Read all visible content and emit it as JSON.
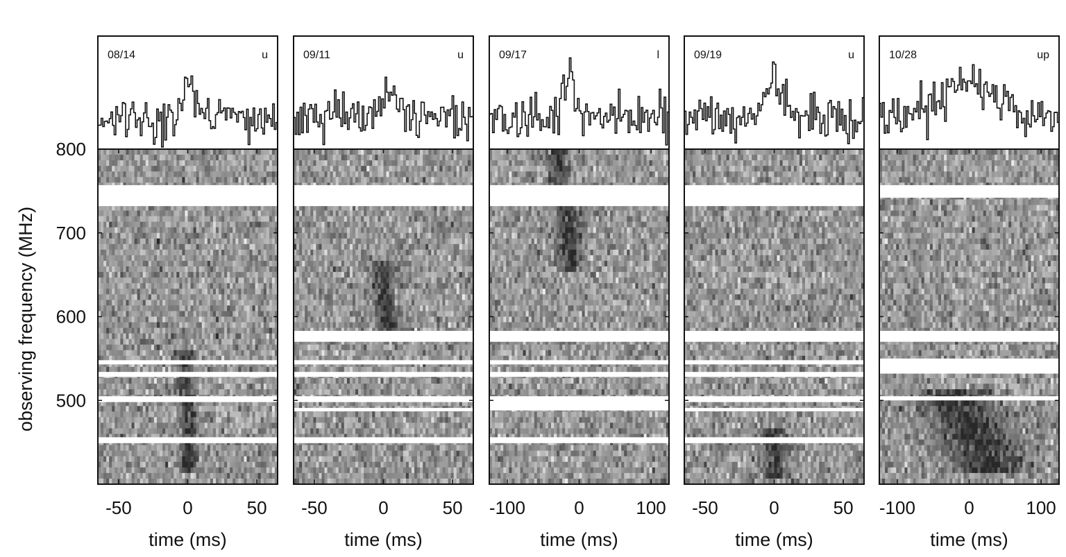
{
  "chart_data": {
    "type": "heatmap",
    "ylabel": "observing frequency (MHz)",
    "ylim": [
      400,
      800
    ],
    "yticks": [
      800,
      700,
      600,
      500
    ],
    "panels": [
      {
        "date": "08/14",
        "pol": "u",
        "xlabel": "time (ms)",
        "xlim": [
          -65,
          65
        ],
        "xticks": [
          -50,
          0,
          50
        ],
        "profile_peak_ms": 0,
        "profile_width_ms": 4,
        "masked_bands_mhz": [
          [
            732,
            757
          ],
          [
            548,
            543
          ],
          [
            534,
            528
          ],
          [
            505,
            498
          ],
          [
            456,
            449
          ]
        ],
        "burst_track": [
          [
            545,
            -3
          ],
          [
            500,
            0
          ],
          [
            480,
            1
          ],
          [
            430,
            0
          ]
        ]
      },
      {
        "date": "09/11",
        "pol": "u",
        "xlabel": "time (ms)",
        "xlabel_ticks_note": "",
        "xlim": [
          -65,
          65
        ],
        "xticks": [
          -50,
          0,
          50
        ],
        "profile_peak_ms": 2,
        "profile_width_ms": 5,
        "masked_bands_mhz": [
          [
            732,
            757
          ],
          [
            583,
            570
          ],
          [
            548,
            543
          ],
          [
            534,
            528
          ],
          [
            505,
            498
          ],
          [
            491,
            487
          ],
          [
            456,
            449
          ]
        ],
        "burst_track": [
          [
            650,
            0
          ],
          [
            610,
            1
          ],
          [
            590,
            3
          ]
        ]
      },
      {
        "date": "09/17",
        "pol": "l",
        "xlabel": "time (ms)",
        "xlim": [
          -125,
          125
        ],
        "xticks": [
          -100,
          0,
          100
        ],
        "profile_peak_ms": -15,
        "profile_width_ms": 10,
        "masked_bands_mhz": [
          [
            732,
            757
          ],
          [
            583,
            570
          ],
          [
            548,
            543
          ],
          [
            534,
            528
          ],
          [
            505,
            488
          ],
          [
            456,
            449
          ]
        ],
        "burst_track": [
          [
            790,
            -30
          ],
          [
            760,
            -28
          ],
          [
            720,
            -15
          ],
          [
            670,
            -12
          ]
        ]
      },
      {
        "date": "09/19",
        "pol": "u",
        "xlabel": "time (ms)",
        "xlim": [
          -65,
          65
        ],
        "xticks": [
          -50,
          0,
          50
        ],
        "profile_peak_ms": 0,
        "profile_width_ms": 6,
        "masked_bands_mhz": [
          [
            732,
            757
          ],
          [
            583,
            570
          ],
          [
            548,
            543
          ],
          [
            534,
            528
          ],
          [
            505,
            498
          ],
          [
            491,
            487
          ],
          [
            456,
            449
          ]
        ],
        "burst_track": [
          [
            450,
            0
          ],
          [
            420,
            1
          ]
        ]
      },
      {
        "date": "10/28",
        "pol": "up",
        "xlabel": "time (ms)",
        "xlim": [
          -125,
          125
        ],
        "xticks": [
          -100,
          0,
          100
        ],
        "profile_peak_ms": 0,
        "profile_width_ms": 35,
        "masked_bands_mhz": [
          [
            742,
            757
          ],
          [
            583,
            570
          ],
          [
            550,
            532
          ],
          [
            505,
            500
          ]
        ],
        "burst_track": [
          [
            495,
            -20
          ],
          [
            470,
            0
          ],
          [
            440,
            15
          ],
          [
            430,
            25
          ]
        ]
      }
    ]
  }
}
